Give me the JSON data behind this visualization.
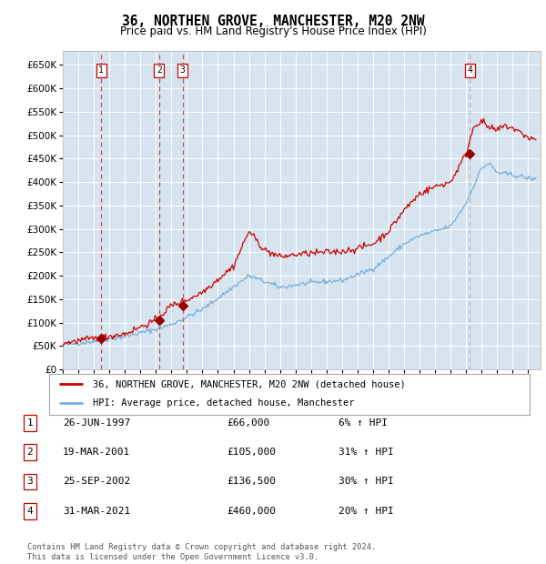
{
  "title": "36, NORTHEN GROVE, MANCHESTER, M20 2NW",
  "subtitle": "Price paid vs. HM Land Registry's House Price Index (HPI)",
  "background_color": "#d6e4f0",
  "fig_background": "#ffffff",
  "grid_color": "#ffffff",
  "sale_dates_num": [
    1997.48,
    2001.21,
    2002.73,
    2021.25
  ],
  "sale_prices": [
    66000,
    105000,
    136500,
    460000
  ],
  "sale_labels": [
    "1",
    "2",
    "3",
    "4"
  ],
  "legend_line1": "36, NORTHEN GROVE, MANCHESTER, M20 2NW (detached house)",
  "legend_line2": "HPI: Average price, detached house, Manchester",
  "table_rows": [
    [
      "1",
      "26-JUN-1997",
      "£66,000",
      "6% ↑ HPI"
    ],
    [
      "2",
      "19-MAR-2001",
      "£105,000",
      "31% ↑ HPI"
    ],
    [
      "3",
      "25-SEP-2002",
      "£136,500",
      "30% ↑ HPI"
    ],
    [
      "4",
      "31-MAR-2021",
      "£460,000",
      "20% ↑ HPI"
    ]
  ],
  "footer": "Contains HM Land Registry data © Crown copyright and database right 2024.\nThis data is licensed under the Open Government Licence v3.0.",
  "ylim": [
    0,
    680000
  ],
  "xlim_start": 1995.0,
  "xlim_end": 2025.8,
  "red_color": "#cc0000",
  "blue_color": "#7aafd4",
  "marker_color": "#990000",
  "vline_color_red": "#cc3333",
  "vline_color_gray": "#aaaaaa"
}
